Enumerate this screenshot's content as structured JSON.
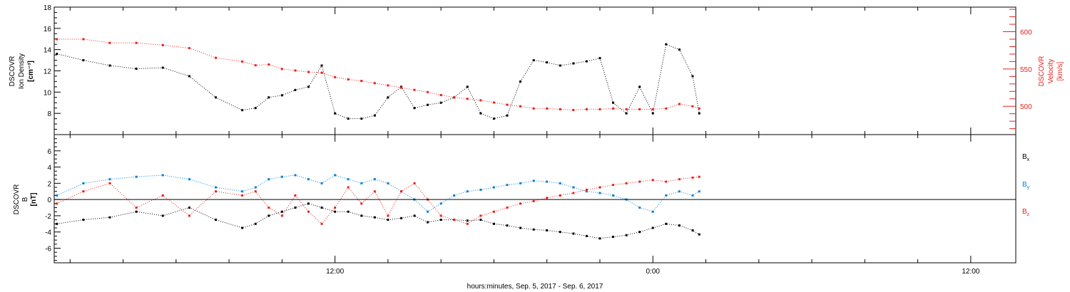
{
  "colors": {
    "black": "#000000",
    "red": "#e8211c",
    "blue": "#0a7fd4"
  },
  "xaxis": {
    "label": "hours:minutes, Sep.  5, 2017 - Sep.  6, 2017",
    "ticks": [
      {
        "hour": 12,
        "label": "12:00"
      },
      {
        "hour": 24,
        "label": "0:00"
      },
      {
        "hour": 36,
        "label": "12:00"
      }
    ],
    "range_hours": [
      1.4,
      37.7
    ]
  },
  "chart_data": [
    {
      "type": "scatter",
      "left_axis": {
        "label_line1": "DSCOVR",
        "label_line2": "Ion Density",
        "label_line3": "[cm⁻³]",
        "ylim": [
          6,
          18
        ],
        "ticks": [
          "8",
          "10",
          "12",
          "14",
          "16",
          "18"
        ]
      },
      "right_axis": {
        "label_line1": "DSCOVR",
        "label_line2": "Velocity",
        "label_line3": "[km/s]",
        "ylim": [
          462,
          633
        ],
        "ticks": [
          "500",
          "550",
          "600"
        ]
      },
      "series": [
        {
          "color": "black",
          "axis": "left",
          "x": [
            1.5,
            2.5,
            3.5,
            4.5,
            5.5,
            6.5,
            7.5,
            8.5,
            9.0,
            9.5,
            10.0,
            10.5,
            11.0,
            11.5,
            12.0,
            12.5,
            13.0,
            13.5,
            14.0,
            14.5,
            15.0,
            15.5,
            16.0,
            16.5,
            17.0,
            17.5,
            18.0,
            18.5,
            19.0,
            19.5,
            20.0,
            20.5,
            21.0,
            21.5,
            22.0,
            22.5,
            23.0,
            23.5,
            24.0,
            24.5,
            25.0,
            25.5,
            25.75
          ],
          "y": [
            13.6,
            13.0,
            12.5,
            12.2,
            12.3,
            11.5,
            9.5,
            8.3,
            8.5,
            9.5,
            9.7,
            10.2,
            10.5,
            12.5,
            8.0,
            7.5,
            7.5,
            7.8,
            9.5,
            10.5,
            8.5,
            8.8,
            9.0,
            9.5,
            10.5,
            8.0,
            7.5,
            7.8,
            11.0,
            13.0,
            12.8,
            12.5,
            12.7,
            12.9,
            13.2,
            9.0,
            8.0,
            10.5,
            8.0,
            14.5,
            14.0,
            11.5,
            8.0
          ]
        },
        {
          "color": "red",
          "axis": "right",
          "x": [
            1.5,
            2.5,
            3.5,
            4.5,
            5.5,
            6.5,
            7.5,
            8.5,
            9.0,
            9.5,
            10.0,
            10.5,
            11.0,
            11.5,
            12.0,
            12.5,
            13.0,
            13.5,
            14.0,
            14.5,
            15.0,
            15.5,
            16.0,
            16.5,
            17.0,
            17.5,
            18.0,
            18.5,
            19.0,
            19.5,
            20.0,
            20.5,
            21.0,
            21.5,
            22.0,
            22.5,
            23.0,
            23.5,
            24.0,
            24.5,
            25.0,
            25.5,
            25.75
          ],
          "y": [
            590,
            590,
            585,
            585,
            582,
            578,
            565,
            560,
            555,
            556,
            550,
            548,
            546,
            545,
            539,
            536,
            534,
            531,
            528,
            525,
            522,
            519,
            515,
            512,
            510,
            508,
            505,
            502,
            500,
            497,
            497,
            496,
            495,
            496,
            496,
            497,
            496,
            496,
            496,
            497,
            503,
            500,
            497
          ]
        }
      ]
    },
    {
      "type": "scatter",
      "left_axis": {
        "label_line1": "DSCOVR",
        "label_line2": "B",
        "label_line3": "[nT]",
        "ylim": [
          -7.8,
          8
        ],
        "ticks": [
          "-6",
          "-4",
          "-2",
          "0",
          "2",
          "4",
          "6"
        ]
      },
      "legend": [
        {
          "label": "B",
          "sub": "x",
          "color": "black"
        },
        {
          "label": "B",
          "sub": "y",
          "color": "blue"
        },
        {
          "label": "B",
          "sub": "z",
          "color": "red"
        }
      ],
      "series": [
        {
          "name": "Bx",
          "color": "black",
          "x": [
            1.5,
            2.5,
            3.5,
            4.5,
            5.5,
            6.5,
            7.5,
            8.5,
            9.0,
            9.5,
            10.0,
            10.5,
            11.0,
            11.5,
            12.0,
            12.5,
            13.0,
            13.5,
            14.0,
            14.5,
            15.0,
            15.5,
            16.0,
            16.5,
            17.0,
            17.5,
            18.0,
            18.5,
            19.0,
            19.5,
            20.0,
            20.5,
            21.0,
            21.5,
            22.0,
            22.5,
            23.0,
            23.5,
            24.0,
            24.5,
            25.0,
            25.5,
            25.75
          ],
          "y": [
            -3.0,
            -2.5,
            -2.2,
            -1.5,
            -2.0,
            -1.0,
            -2.5,
            -3.5,
            -3.0,
            -2.0,
            -1.5,
            -1.0,
            -0.5,
            -1.0,
            -1.5,
            -1.5,
            -2.0,
            -2.2,
            -2.5,
            -2.3,
            -2.0,
            -2.8,
            -2.5,
            -2.5,
            -2.6,
            -2.5,
            -3.0,
            -3.2,
            -3.5,
            -3.7,
            -3.8,
            -4.0,
            -4.2,
            -4.5,
            -4.8,
            -4.6,
            -4.4,
            -4.0,
            -3.5,
            -3.0,
            -3.2,
            -3.8,
            -4.3
          ]
        },
        {
          "name": "By",
          "color": "blue",
          "x": [
            1.5,
            2.5,
            3.5,
            4.5,
            5.5,
            6.5,
            7.5,
            8.5,
            9.0,
            9.5,
            10.0,
            10.5,
            11.0,
            11.5,
            12.0,
            12.5,
            13.0,
            13.5,
            14.0,
            14.5,
            15.0,
            15.5,
            16.0,
            16.5,
            17.0,
            17.5,
            18.0,
            18.5,
            19.0,
            19.5,
            20.0,
            20.5,
            21.0,
            21.5,
            22.0,
            22.5,
            23.0,
            23.5,
            24.0,
            24.5,
            25.0,
            25.5,
            25.75
          ],
          "y": [
            0.5,
            2.0,
            2.5,
            2.8,
            3.0,
            2.5,
            1.5,
            1.0,
            1.5,
            2.5,
            2.8,
            3.0,
            2.5,
            2.0,
            3.0,
            2.5,
            2.0,
            2.5,
            2.0,
            1.0,
            0.0,
            -1.5,
            -0.5,
            0.5,
            1.0,
            1.2,
            1.5,
            1.8,
            2.0,
            2.3,
            2.2,
            2.0,
            1.5,
            1.0,
            0.8,
            0.5,
            0.0,
            -1.0,
            -1.5,
            0.5,
            1.0,
            0.5,
            1.0
          ]
        },
        {
          "name": "Bz",
          "color": "red",
          "x": [
            1.5,
            2.5,
            3.5,
            4.5,
            5.5,
            6.5,
            7.5,
            8.5,
            9.0,
            9.5,
            10.0,
            10.5,
            11.0,
            11.5,
            12.0,
            12.5,
            13.0,
            13.5,
            14.0,
            14.5,
            15.0,
            15.5,
            16.0,
            16.5,
            17.0,
            17.5,
            18.0,
            18.5,
            19.0,
            19.5,
            20.0,
            20.5,
            21.0,
            21.5,
            22.0,
            22.5,
            23.0,
            23.5,
            24.0,
            24.5,
            25.0,
            25.5,
            25.75
          ],
          "y": [
            -0.5,
            1.0,
            2.0,
            -1.0,
            0.5,
            -2.0,
            1.0,
            0.5,
            1.0,
            -1.0,
            -2.0,
            0.5,
            -1.5,
            -3.0,
            -1.0,
            1.5,
            -0.5,
            1.0,
            -2.0,
            1.0,
            2.0,
            0.0,
            -2.0,
            -2.5,
            -3.0,
            -2.0,
            -1.5,
            -1.0,
            -0.5,
            -0.2,
            0.2,
            0.5,
            0.8,
            1.2,
            1.5,
            1.8,
            2.0,
            2.2,
            2.4,
            2.2,
            2.5,
            2.7,
            2.8
          ]
        }
      ]
    }
  ]
}
